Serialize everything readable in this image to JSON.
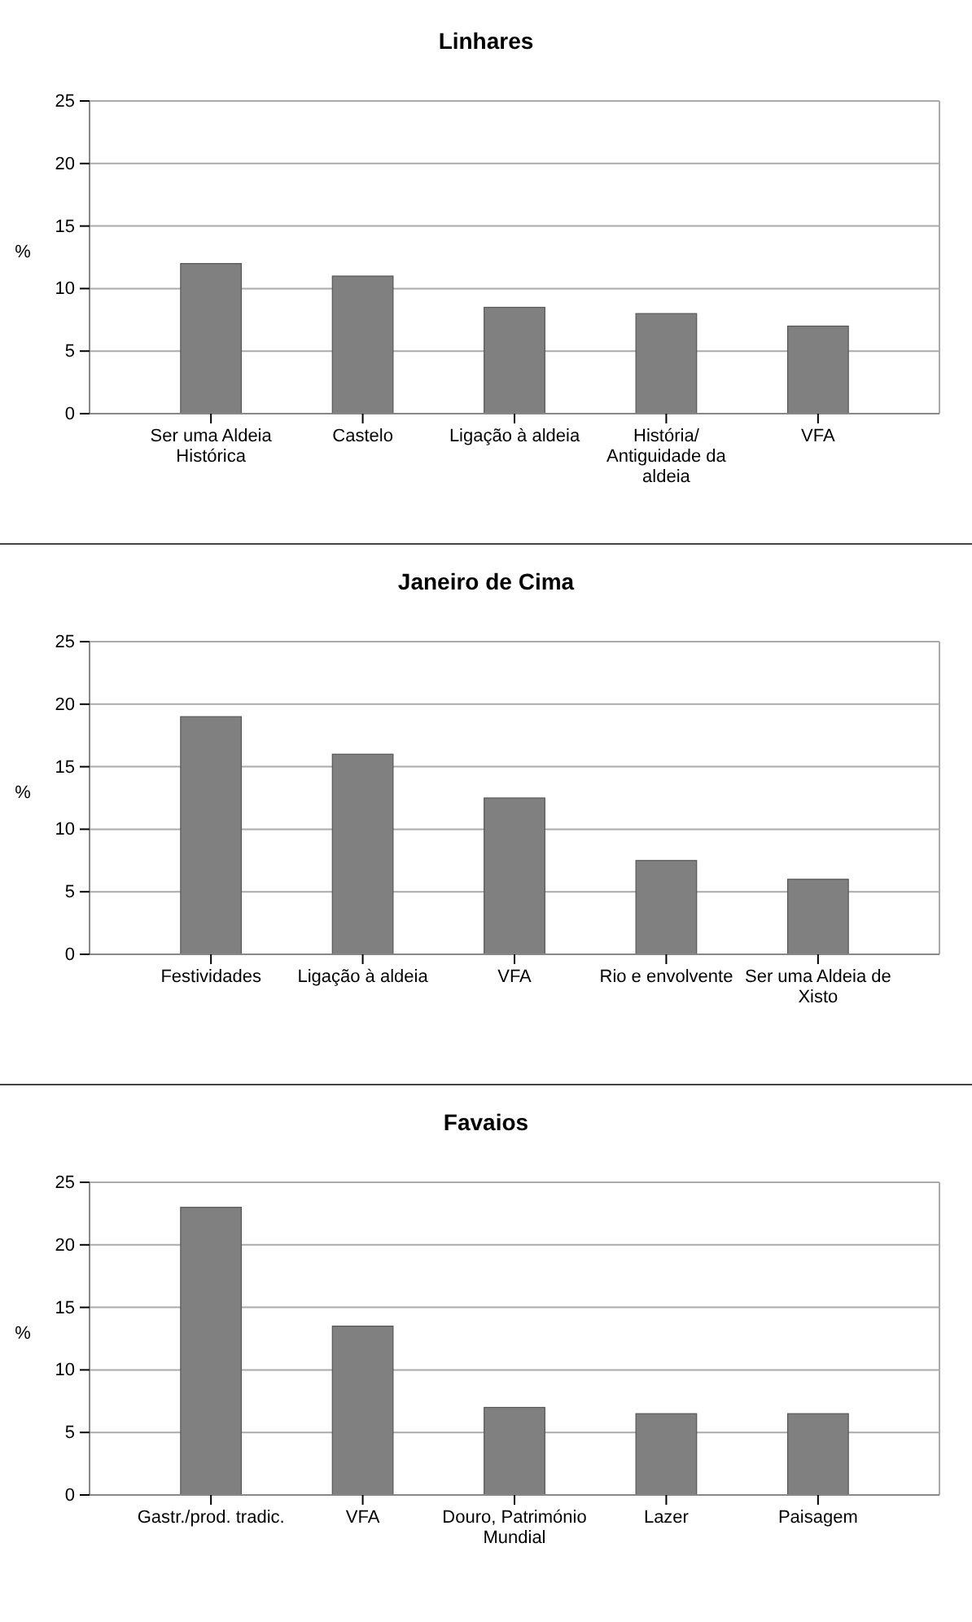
{
  "chart_data": [
    {
      "type": "bar",
      "title": "Linhares",
      "ylabel": "%",
      "categories": [
        "Ser uma Aldeia Histórica",
        "Castelo",
        "Ligação à aldeia",
        "História/ Antiguidade da aldeia",
        "VFA"
      ],
      "values": [
        12,
        11,
        8.5,
        8,
        7
      ],
      "color": "#808080",
      "ylim": [
        0,
        25
      ],
      "yticks": [
        0,
        5,
        10,
        15,
        20,
        25
      ],
      "grid": "y"
    },
    {
      "type": "bar",
      "title": "Janeiro de Cima",
      "ylabel": "%",
      "categories": [
        "Festividades",
        "Ligação à aldeia",
        "VFA",
        "Rio e envolvente",
        "Ser uma Aldeia de Xisto"
      ],
      "values": [
        19,
        16,
        12.5,
        7.5,
        6
      ],
      "color": "#808080",
      "ylim": [
        0,
        25
      ],
      "yticks": [
        0,
        5,
        10,
        15,
        20,
        25
      ],
      "grid": "y"
    },
    {
      "type": "bar",
      "title": "Favaios",
      "ylabel": "%",
      "categories": [
        "Gastr./prod. tradic.",
        "VFA",
        "Douro, Património Mundial",
        "Lazer",
        "Paisagem"
      ],
      "values": [
        23,
        13.5,
        7,
        6.5,
        6.5
      ],
      "color": "#808080",
      "ylim": [
        0,
        25
      ],
      "yticks": [
        0,
        5,
        10,
        15,
        20,
        25
      ],
      "grid": "y"
    }
  ]
}
